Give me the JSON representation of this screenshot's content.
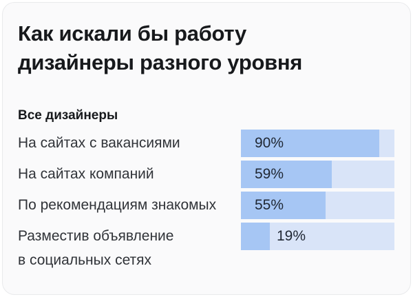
{
  "card": {
    "title": "Как искали бы работу\nдизайнеры разного уровня",
    "subtitle": "Все дизайнеры"
  },
  "chart_data": {
    "type": "bar",
    "orientation": "horizontal",
    "title": "Как искали бы работу дизайнеры разного уровня",
    "group_label": "Все дизайнеры",
    "categories": [
      "На сайтах с вакансиями",
      "На сайтах компаний",
      "По рекомендациям знакомых",
      "Разместив объявление\nв социальных сетях"
    ],
    "values": [
      90,
      59,
      55,
      19
    ],
    "value_labels": [
      "90%",
      "59%",
      "55%",
      "19%"
    ],
    "value_suffix": "%",
    "xlim": [
      0,
      100
    ],
    "legend": "none",
    "grid": "off",
    "colors": {
      "bar_fill": "#a6c6f4",
      "bar_track": "#d9e4f8",
      "value_text": "#1f2733",
      "label_text": "#303338",
      "title_text": "#17191c",
      "card_background": "#fafafb",
      "card_border": "#e9eaec"
    }
  }
}
